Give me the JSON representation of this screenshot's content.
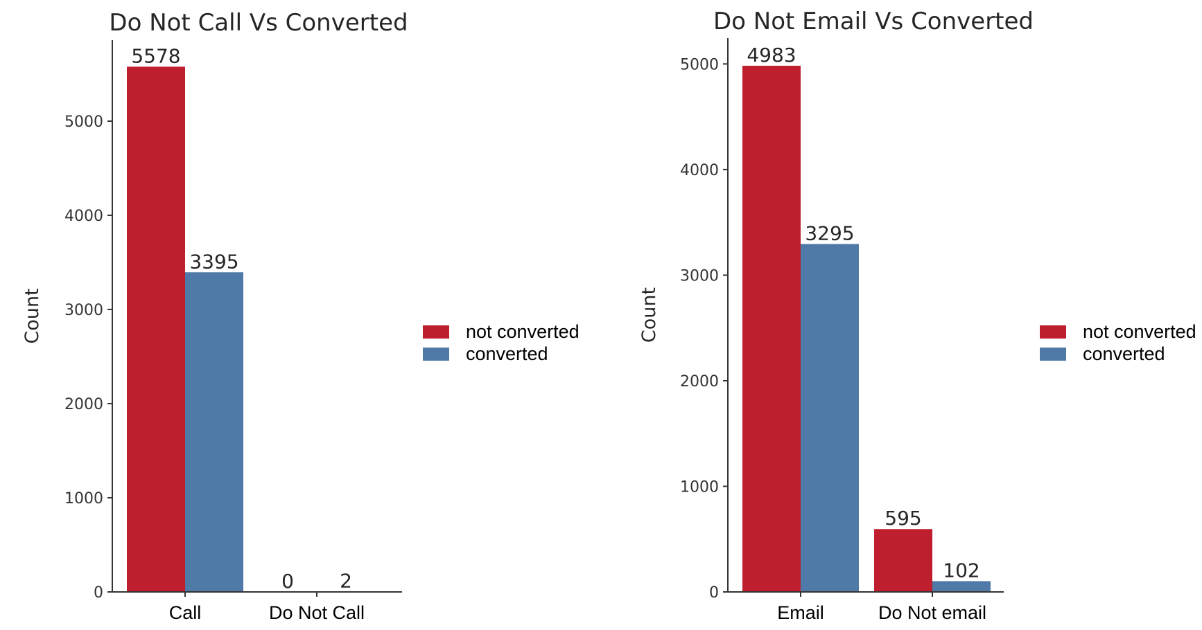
{
  "colors": {
    "not_converted": "#be1e2d",
    "converted": "#4f79a7"
  },
  "chart_data": [
    {
      "type": "bar",
      "title": "Do Not Call Vs Converted",
      "xlabel": "",
      "ylabel": "Count",
      "categories": [
        "Call",
        "Do Not Call"
      ],
      "series": [
        {
          "name": "not converted",
          "values": [
            5578,
            0
          ]
        },
        {
          "name": "converted",
          "values": [
            3395,
            2
          ]
        }
      ],
      "data_labels": [
        [
          "5578",
          "3395"
        ],
        [
          "0",
          "2"
        ]
      ],
      "yticks": [
        0,
        1000,
        2000,
        3000,
        4000,
        5000
      ],
      "ylim": [
        0,
        5860
      ],
      "legend": {
        "placement": "right",
        "entries": [
          "not converted",
          "converted"
        ]
      },
      "grid": false
    },
    {
      "type": "bar",
      "title": "Do Not Email Vs Converted",
      "xlabel": "",
      "ylabel": "Count",
      "categories": [
        "Email",
        "Do Not email"
      ],
      "series": [
        {
          "name": "not converted",
          "values": [
            4983,
            595
          ]
        },
        {
          "name": "converted",
          "values": [
            3295,
            102
          ]
        }
      ],
      "data_labels": [
        [
          "4983",
          "3295"
        ],
        [
          "595",
          "102"
        ]
      ],
      "yticks": [
        0,
        1000,
        2000,
        3000,
        4000,
        5000
      ],
      "ylim": [
        0,
        5245
      ],
      "legend": {
        "placement": "right",
        "entries": [
          "not converted",
          "converted"
        ]
      },
      "grid": false
    }
  ]
}
